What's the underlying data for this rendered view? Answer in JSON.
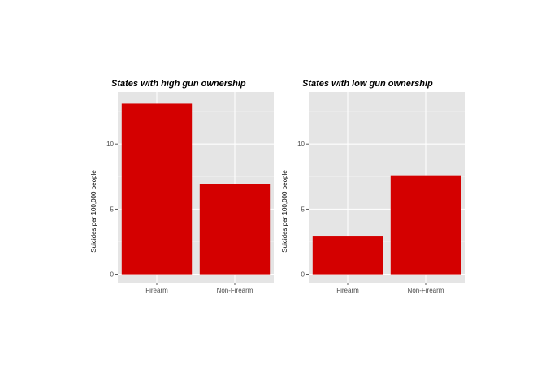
{
  "chart_data": [
    {
      "type": "bar",
      "title": "States with high gun ownership",
      "xlabel": "",
      "ylabel": "Suicides per 100,000 people",
      "categories": [
        "Firearm",
        "Non-Firearm"
      ],
      "values": [
        13.1,
        6.9
      ],
      "ylim": [
        0,
        15
      ],
      "yticks": [
        0,
        5,
        10
      ],
      "grid": true,
      "bar_color": "#d40000",
      "panel_color": "#e5e5e5"
    },
    {
      "type": "bar",
      "title": "States with low gun ownership",
      "xlabel": "",
      "ylabel": "Suicides per 100,000 people",
      "categories": [
        "Firearm",
        "Non-Firearm"
      ],
      "values": [
        2.9,
        7.6
      ],
      "ylim": [
        0,
        15
      ],
      "yticks": [
        0,
        5,
        10
      ],
      "grid": true,
      "bar_color": "#d40000",
      "panel_color": "#e5e5e5"
    }
  ]
}
